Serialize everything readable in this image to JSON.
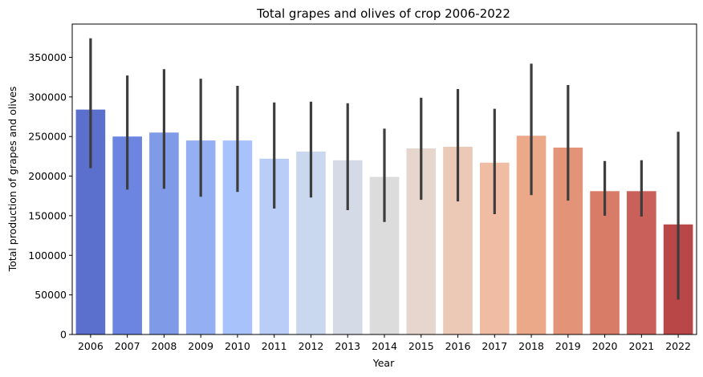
{
  "chart_data": {
    "type": "bar",
    "title": "Total grapes and olives of crop 2006-2022",
    "xlabel": "Year",
    "ylabel": "Total production of grapes and olives",
    "categories": [
      "2006",
      "2007",
      "2008",
      "2009",
      "2010",
      "2011",
      "2012",
      "2013",
      "2014",
      "2015",
      "2016",
      "2017",
      "2018",
      "2019",
      "2020",
      "2021",
      "2022"
    ],
    "values": [
      284000,
      250000,
      255000,
      245000,
      245000,
      222000,
      231000,
      220000,
      199000,
      235000,
      237000,
      217000,
      251000,
      236000,
      181000,
      181000,
      139000
    ],
    "error_low": [
      210000,
      183000,
      184000,
      174000,
      180000,
      159000,
      173000,
      157000,
      142000,
      170000,
      168000,
      152000,
      176000,
      169000,
      150000,
      149000,
      44000
    ],
    "error_high": [
      374000,
      327000,
      335000,
      323000,
      314000,
      293000,
      294000,
      292000,
      260000,
      299000,
      310000,
      285000,
      342000,
      315000,
      219000,
      220000,
      256000
    ],
    "bar_colors": [
      "#5b6fcc",
      "#6b85e0",
      "#7f9ae6",
      "#94b0f3",
      "#a8c3fb",
      "#b9cdf6",
      "#c9d8ef",
      "#d4dbe6",
      "#dcdcdc",
      "#e7d6cd",
      "#ecc8b6",
      "#f0bca3",
      "#eca98a",
      "#e39478",
      "#d97c67",
      "#c9605a",
      "#b94747"
    ],
    "yticks": [
      "0",
      "50000",
      "100000",
      "150000",
      "200000",
      "250000",
      "300000",
      "350000"
    ],
    "ylim": [
      0,
      392000
    ],
    "grid": false,
    "errorbar_color": "#3d3d3d"
  }
}
